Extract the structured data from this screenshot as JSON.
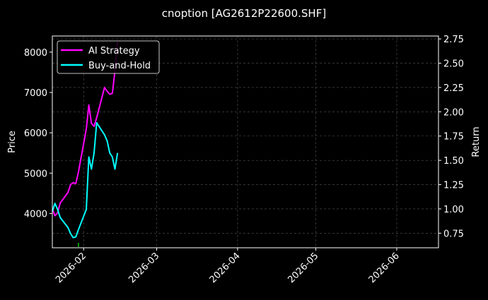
{
  "title": "cnoption [AG2612P22600.SHF]",
  "chart_data": {
    "type": "line",
    "title": "cnoption [AG2612P22600.SHF]",
    "xlabel": "",
    "ylabel": "Price",
    "y2label": "Return",
    "x_ticks": [
      "2026-02",
      "2026-03",
      "2026-04",
      "2026-05",
      "2026-06"
    ],
    "x_tick_dates": [
      "2026-02-01",
      "2026-03-01",
      "2026-04-01",
      "2026-05-01",
      "2026-06-01"
    ],
    "xlim": [
      "2026-01-20",
      "2026-06-17"
    ],
    "ylim": [
      3150,
      8400
    ],
    "y2lim": [
      0.6,
      2.78
    ],
    "y_ticks": [
      4000,
      5000,
      6000,
      7000,
      8000
    ],
    "y2_ticks": [
      0.75,
      1.0,
      1.25,
      1.5,
      1.75,
      2.0,
      2.25,
      2.5,
      2.75
    ],
    "grid": true,
    "legend": "top-left",
    "axis": "left",
    "colors": {
      "background": "#000000",
      "ai_strategy": "#ff00ff",
      "buy_and_hold": "#00ffff",
      "marker": "#00c800"
    },
    "series": [
      {
        "name": "AI Strategy",
        "axis": "right",
        "color": "#ff00ff",
        "x": [
          "2026-01-20",
          "2026-01-21",
          "2026-01-22",
          "2026-01-23",
          "2026-01-26",
          "2026-01-27",
          "2026-01-28",
          "2026-01-29",
          "2026-01-30",
          "2026-02-02",
          "2026-02-03",
          "2026-02-04",
          "2026-02-05",
          "2026-02-06",
          "2026-02-09",
          "2026-02-10",
          "2026-02-11",
          "2026-02-12",
          "2026-02-13",
          "2026-02-14"
        ],
        "values": [
          1.0,
          0.93,
          0.96,
          1.06,
          1.17,
          1.25,
          1.27,
          1.26,
          1.38,
          1.82,
          2.07,
          1.88,
          1.85,
          1.94,
          2.25,
          2.21,
          2.18,
          2.19,
          2.42,
          2.72
        ]
      },
      {
        "name": "Buy-and-Hold",
        "axis": "left",
        "color": "#00ffff",
        "x": [
          "2026-01-20",
          "2026-01-21",
          "2026-01-22",
          "2026-01-23",
          "2026-01-26",
          "2026-01-27",
          "2026-01-28",
          "2026-01-29",
          "2026-01-30",
          "2026-02-02",
          "2026-02-03",
          "2026-02-04",
          "2026-02-05",
          "2026-02-06",
          "2026-02-09",
          "2026-02-10",
          "2026-02-11",
          "2026-02-12",
          "2026-02-13",
          "2026-02-14"
        ],
        "values": [
          4050,
          4250,
          4100,
          3900,
          3650,
          3500,
          3400,
          3420,
          3600,
          4100,
          5400,
          5100,
          5500,
          6250,
          5950,
          5800,
          5500,
          5400,
          5100,
          5500
        ]
      }
    ],
    "markers": [
      {
        "x": "2026-01-30",
        "y": 3220,
        "color": "#00c800"
      }
    ]
  }
}
